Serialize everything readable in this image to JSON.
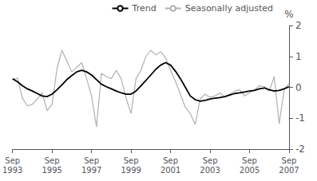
{
  "chart_data": {
    "type": "line",
    "ylabel": "%",
    "categories": [
      "Sep\n1993",
      null,
      null,
      null,
      null,
      null,
      null,
      null,
      "Sep\n1995",
      null,
      null,
      null,
      null,
      null,
      null,
      null,
      "Sep\n1997",
      null,
      null,
      null,
      null,
      null,
      null,
      null,
      "Sep\n1999",
      null,
      null,
      null,
      null,
      null,
      null,
      null,
      "Sep\n2001",
      null,
      null,
      null,
      null,
      null,
      null,
      null,
      "Sep\n2003",
      null,
      null,
      null,
      null,
      null,
      null,
      null,
      "Sep\n2005",
      null,
      null,
      null,
      null,
      null,
      null,
      null,
      "Sep\n2007"
    ],
    "series": [
      {
        "name": "Trend",
        "color": "#000000",
        "values": [
          0.28,
          0.18,
          0.05,
          -0.05,
          -0.12,
          -0.2,
          -0.28,
          -0.3,
          -0.22,
          -0.08,
          0.08,
          0.25,
          0.38,
          0.5,
          0.55,
          0.5,
          0.4,
          0.25,
          0.1,
          0.02,
          -0.05,
          -0.12,
          -0.18,
          -0.22,
          -0.22,
          -0.12,
          0.05,
          0.22,
          0.4,
          0.58,
          0.72,
          0.8,
          0.72,
          0.52,
          0.28,
          0.0,
          -0.28,
          -0.4,
          -0.45,
          -0.42,
          -0.38,
          -0.35,
          -0.33,
          -0.3,
          -0.25,
          -0.2,
          -0.18,
          -0.15,
          -0.12,
          -0.1,
          -0.05,
          -0.02,
          -0.08,
          -0.12,
          -0.1,
          -0.05,
          0.02
        ]
      },
      {
        "name": "Seasonally adjusted",
        "color": "#b0b0b0",
        "values": [
          0.25,
          0.3,
          -0.35,
          -0.6,
          -0.55,
          -0.38,
          -0.18,
          -0.75,
          -0.55,
          0.6,
          1.2,
          0.85,
          0.5,
          0.65,
          0.8,
          0.28,
          -0.28,
          -1.28,
          0.45,
          0.35,
          0.28,
          0.55,
          0.28,
          -0.35,
          -0.85,
          0.28,
          0.55,
          1.0,
          1.2,
          1.05,
          1.15,
          0.95,
          0.55,
          0.18,
          -0.22,
          -0.65,
          -0.85,
          -1.2,
          -0.38,
          -0.22,
          -0.32,
          -0.28,
          -0.18,
          -0.32,
          -0.22,
          -0.12,
          -0.08,
          -0.28,
          -0.18,
          -0.08,
          0.05,
          0.02,
          -0.12,
          0.35,
          -1.18,
          -0.08,
          0.12
        ]
      }
    ],
    "ylim": [
      -2,
      2
    ],
    "yticks": [
      -2,
      -1,
      0,
      1,
      2
    ],
    "grid": false,
    "legend": "upper right"
  }
}
